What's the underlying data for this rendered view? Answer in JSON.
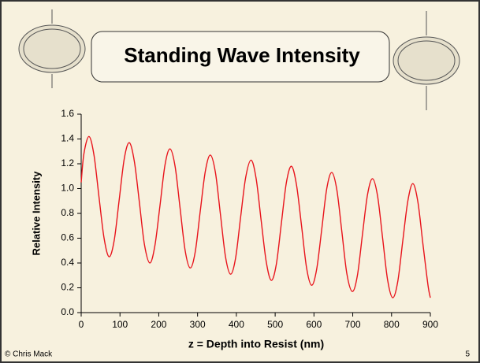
{
  "chart_data": {
    "type": "line",
    "title": "Standing Wave Intensity",
    "x_label": "z  =  Depth into Resist (nm)",
    "y_label": "Relative Intensity",
    "x": [
      0,
      7,
      20,
      33,
      46,
      59,
      72,
      85,
      98,
      111,
      124,
      137,
      150,
      163,
      177,
      190,
      203,
      216,
      229,
      242,
      255,
      268,
      281,
      294,
      307,
      320,
      333,
      346,
      359,
      372,
      385,
      398,
      411,
      424,
      438,
      451,
      464,
      477,
      490,
      503,
      516,
      529,
      542,
      555,
      568,
      581,
      594,
      607,
      620,
      633,
      646,
      659,
      672,
      685,
      699,
      712,
      725,
      738,
      751,
      764,
      777,
      790,
      803,
      816,
      829,
      842,
      855,
      868,
      881,
      894,
      900
    ],
    "values": [
      1.05,
      1.28,
      1.42,
      1.27,
      0.93,
      0.6,
      0.45,
      0.58,
      0.91,
      1.24,
      1.37,
      1.22,
      0.89,
      0.55,
      0.4,
      0.54,
      0.86,
      1.19,
      1.32,
      1.18,
      0.84,
      0.5,
      0.36,
      0.49,
      0.82,
      1.14,
      1.27,
      1.13,
      0.79,
      0.45,
      0.31,
      0.44,
      0.77,
      1.09,
      1.23,
      1.08,
      0.74,
      0.41,
      0.26,
      0.39,
      0.72,
      1.05,
      1.18,
      1.03,
      0.7,
      0.36,
      0.22,
      0.35,
      0.67,
      1.0,
      1.13,
      0.99,
      0.65,
      0.31,
      0.17,
      0.3,
      0.63,
      0.95,
      1.08,
      0.94,
      0.6,
      0.26,
      0.12,
      0.25,
      0.58,
      0.9,
      1.04,
      0.89,
      0.55,
      0.22,
      0.12
    ],
    "color": "#e8141c",
    "xlim": [
      0,
      900
    ],
    "xticks": [
      0,
      100,
      200,
      300,
      400,
      500,
      600,
      700,
      800,
      900
    ],
    "ylim": [
      0,
      1.6
    ],
    "yticks": [
      {
        "value": 0,
        "label": "0.0"
      },
      0.2,
      0.4,
      0.6,
      0.8,
      {
        "value": 1,
        "label": "1.0"
      },
      1.2,
      1.4,
      1.6
    ]
  },
  "footer": {
    "author": "© Chris Mack",
    "page": "5"
  }
}
